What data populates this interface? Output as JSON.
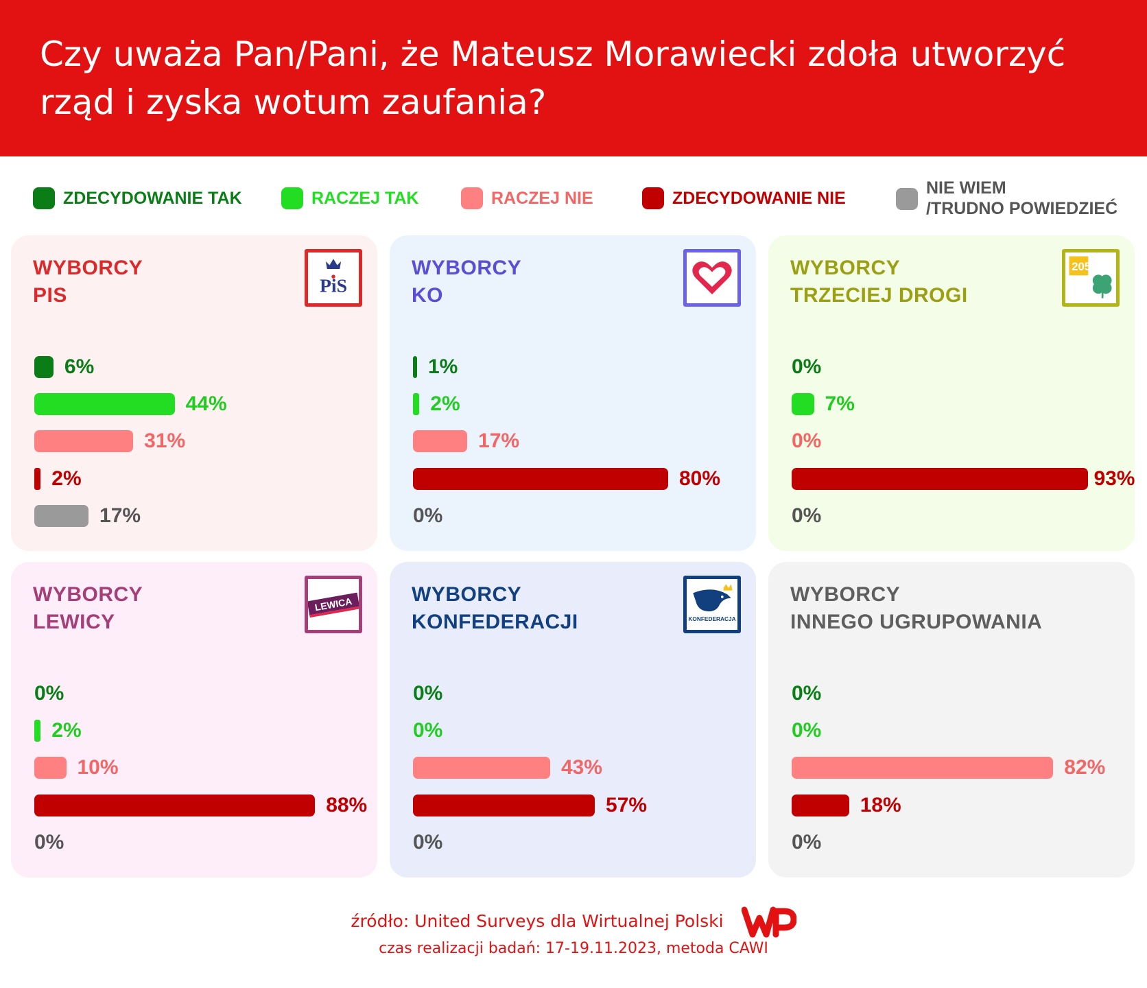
{
  "title": "Czy uważa Pan/Pani, że Mateusz Morawiecki zdoła utworzyć rząd i zyska wotum zaufania?",
  "legend": [
    {
      "label": "ZDECYDOWANIE TAK",
      "color": "#0a7d16"
    },
    {
      "label": "RACZEJ TAK",
      "color": "#22dd22"
    },
    {
      "label": "RACZEJ NIE",
      "color": "#ff8080"
    },
    {
      "label": "ZDECYDOWANIE NIE",
      "color": "#c00000"
    },
    {
      "label": "NIE WIEM\n/TRUDNO POWIEDZIEĆ",
      "color": "#9a9a9a"
    }
  ],
  "chart_data": {
    "type": "bar",
    "orientation": "horizontal",
    "categories": [
      "ZDECYDOWANIE TAK",
      "RACZEJ TAK",
      "RACZEJ NIE",
      "ZDECYDOWANIE NIE",
      "NIE WIEM /TRUDNO POWIEDZIEĆ"
    ],
    "unit": "%",
    "panels": [
      {
        "title_line1": "WYBORCY",
        "title_line2": "PIS",
        "title_color": "#dc2a2a",
        "background": "#fdf1f1",
        "logo": "pis-logo",
        "logo_color": "#dc2a2a",
        "logo_text": "PiS",
        "values": [
          6,
          44,
          31,
          2,
          17
        ],
        "labels": [
          "6%",
          "44%",
          "31%",
          "2%",
          "17%"
        ]
      },
      {
        "title_line1": "WYBORCY",
        "title_line2": "KO",
        "title_color": "#5a4fd4",
        "background": "#ebf3fd",
        "logo": "ko-heart-logo",
        "logo_color": "#6a63e8",
        "logo_text": "",
        "values": [
          1,
          2,
          17,
          80,
          0
        ],
        "labels": [
          "1%",
          "2%",
          "17%",
          "80%",
          "0%"
        ]
      },
      {
        "title_line1": "WYBORCY",
        "title_line2": "TRZECIEJ DROGI",
        "title_color": "#9aa012",
        "background": "#f4fde8",
        "logo": "trzecia-droga-logo",
        "logo_color": "#b2b513",
        "logo_text": "",
        "values": [
          0,
          7,
          0,
          93,
          0
        ],
        "labels": [
          "0%",
          "7%",
          "0%",
          "93%",
          "0%"
        ]
      },
      {
        "title_line1": "WYBORCY",
        "title_line2": "LEWICY",
        "title_color": "#a43f78",
        "background": "#fdeefa",
        "logo": "lewica-logo",
        "logo_color": "#a43f78",
        "logo_text": "LEWICA",
        "values": [
          0,
          2,
          10,
          88,
          0
        ],
        "labels": [
          "0%",
          "2%",
          "10%",
          "88%",
          "0%"
        ]
      },
      {
        "title_line1": "WYBORCY",
        "title_line2": "KONFEDERACJI",
        "title_color": "#123f7e",
        "background": "#e8ecfb",
        "logo": "konfederacja-logo",
        "logo_color": "#123f7e",
        "logo_text": "KONFEDERACJA",
        "values": [
          0,
          0,
          43,
          57,
          0
        ],
        "labels": [
          "0%",
          "0%",
          "43%",
          "57%",
          "0%"
        ]
      },
      {
        "title_line1": "WYBORCY",
        "title_line2": "INNEGO UGRUPOWANIA",
        "title_color": "#5e5e5e",
        "background": "#f3f3f3",
        "logo": "",
        "logo_color": "",
        "logo_text": "",
        "values": [
          0,
          0,
          82,
          18,
          0
        ],
        "labels": [
          "0%",
          "0%",
          "82%",
          "18%",
          "0%"
        ]
      }
    ]
  },
  "footer": {
    "source": "źródło: United Surveys dla Wirtualnej Polski",
    "method": "czas realizacji badań: 17-19.11.2023, metoda CAWI",
    "logo_text": "WP"
  },
  "colors": {
    "header_bg": "#e31212",
    "accent": "#e31212"
  }
}
